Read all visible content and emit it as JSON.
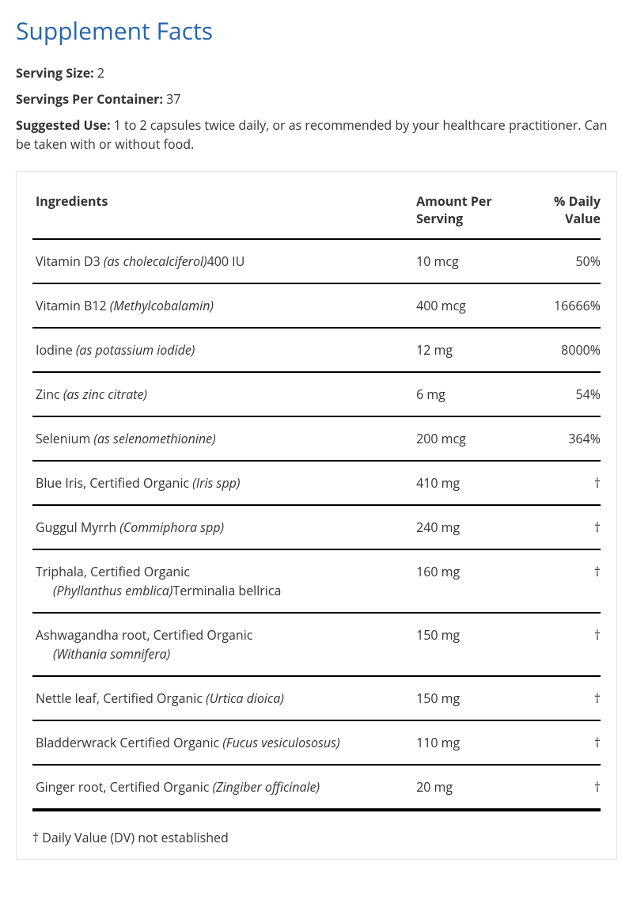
{
  "title": "Supplement Facts",
  "serving_size_label": "Serving Size:",
  "serving_size_value": "2",
  "servings_per_container_label": "Servings Per Container:",
  "servings_per_container_value": "37",
  "suggested_use_label": "Suggested Use:",
  "suggested_use_value": "1 to 2 capsules twice daily, or as recommended by your healthcare practitioner. Can be taken with or without food.",
  "columns": {
    "ingredients": "Ingredients",
    "amount": "Amount Per Serving",
    "dv": "% Daily Value"
  },
  "rows": [
    {
      "name": "Vitamin D3 ",
      "sci": "(as cholecalciferol)",
      "trail": "400 IU",
      "amount": "10 mcg",
      "dv": "50%"
    },
    {
      "name": "Vitamin B12 ",
      "sci": "(Methylcobalamin)",
      "trail": "",
      "amount": "400 mcg",
      "dv": "16666%"
    },
    {
      "name": "Iodine ",
      "sci": "(as potassium iodide)",
      "trail": "",
      "amount": "12 mg",
      "dv": "8000%"
    },
    {
      "name": "Zinc ",
      "sci": "(as zinc citrate)",
      "trail": "",
      "amount": "6 mg",
      "dv": "54%"
    },
    {
      "name": "Selenium ",
      "sci": "(as selenomethionine)",
      "trail": "",
      "amount": "200 mcg",
      "dv": "364%"
    },
    {
      "name": "Blue Iris, Certified Organic ",
      "sci": "(Iris spp)",
      "trail": "",
      "amount": "410 mg",
      "dv": "†"
    },
    {
      "name": "Guggul Myrrh ",
      "sci": "(Commiphora spp)",
      "trail": "",
      "amount": "240 mg",
      "dv": "†"
    },
    {
      "name": "Triphala, Certified Organic",
      "sci": "",
      "trail": "",
      "extra_sci": "(Phyllanthus emblica)",
      "extra_trail": "Terminalia bellrica",
      "amount": "160 mg",
      "dv": "†"
    },
    {
      "name": "Ashwagandha root, Certified Organic",
      "sci": "",
      "trail": "",
      "extra_sci": "(Withania somnifera)",
      "extra_trail": "",
      "amount": "150 mg",
      "dv": "†"
    },
    {
      "name": "Nettle leaf, Certified Organic ",
      "sci": "(Urtica dioica)",
      "trail": "",
      "amount": "150 mg",
      "dv": "†"
    },
    {
      "name": "Bladderwrack Certified Organic ",
      "sci": "(Fucus vesiculososus)",
      "trail": "",
      "amount": "110 mg",
      "dv": "†"
    },
    {
      "name": "Ginger root, Certified Organic ",
      "sci": "(Zingiber officinale)",
      "trail": "",
      "amount": "20 mg",
      "dv": "†"
    }
  ],
  "footnote": "† Daily Value (DV) not established"
}
